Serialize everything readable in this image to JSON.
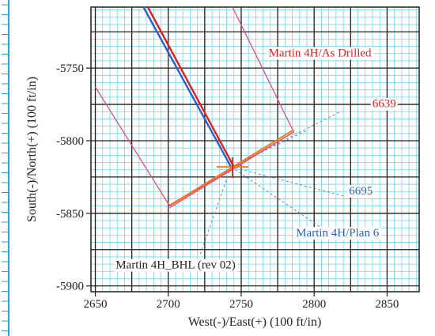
{
  "colors": {
    "background": "#ffffff",
    "minor_grid": "#72d4ec",
    "major_grid": "#1f1f1f",
    "as_drilled": "#e02020",
    "plan": "#2a62c8",
    "target": "#e2507a",
    "bhl_pink": "#e8506c",
    "bhl_orange": "#f07f1c",
    "ruler": "#2aa5d4"
  },
  "chart_data": {
    "type": "line",
    "xlabel": "West(-)/East(+) (100 ft/in)",
    "ylabel": "South(-)/North(+) (100 ft/in)",
    "xlim": [
      2647,
      2872
    ],
    "ylim": [
      -5904,
      -5708
    ],
    "grid": true,
    "x_ticks": [
      {
        "value": 2650,
        "label": "2650"
      },
      {
        "value": 2700,
        "label": "2700"
      },
      {
        "value": 2750,
        "label": "2750"
      },
      {
        "value": 2800,
        "label": "2800"
      },
      {
        "value": 2850,
        "label": "2850"
      }
    ],
    "y_ticks": [
      {
        "value": -5750,
        "label": "-5750"
      },
      {
        "value": -5800,
        "label": "-5800"
      },
      {
        "value": -5850,
        "label": "-5850"
      },
      {
        "value": -5900,
        "label": "-5900"
      }
    ],
    "series": [
      {
        "name": "Martin 4H/As Drilled",
        "color": "#e02020",
        "x": [
          2686,
          2745
        ],
        "y": [
          -5708,
          -5818
        ]
      },
      {
        "name": "Martin 4H/Plan 6",
        "color": "#2a62c8",
        "x": [
          2683,
          2743
        ],
        "y": [
          -5708,
          -5818
        ]
      }
    ],
    "outline": {
      "name": "Martin 4H_BHL (rev 02)",
      "x": [
        2650,
        2701,
        2786,
        2744
      ],
      "y": [
        -5763,
        -5845,
        -5794,
        -5708
      ]
    },
    "bhl_segment": {
      "x": [
        2701,
        2786
      ],
      "y": [
        -5845,
        -5793
      ]
    },
    "target_point": {
      "x": 2744,
      "y": -5818
    },
    "annotations": [
      {
        "text": "Martin 4H/As Drilled",
        "color": "#e02020",
        "x": 2804,
        "y": -5742
      },
      {
        "text": "6639",
        "color": "#e02020",
        "x": 2848,
        "y": -5777
      },
      {
        "text": "6695",
        "color": "#2a62c8",
        "x": 2832,
        "y": -5837
      },
      {
        "text": "Martin 4H/Plan 6",
        "color": "#2a62c8",
        "x": 2816,
        "y": -5866
      },
      {
        "text": "Martin 4H_BHL (rev 02)",
        "color": "#222222",
        "x": 2705,
        "y": -5888
      }
    ],
    "leaders": [
      {
        "from": [
          2743,
          -5818
        ],
        "to": [
          2795,
          -5793
        ]
      },
      {
        "from": [
          2743,
          -5818
        ],
        "to": [
          2818,
          -5780
        ]
      },
      {
        "from": [
          2743,
          -5818
        ],
        "to": [
          2820,
          -5838
        ]
      },
      {
        "from": [
          2743,
          -5818
        ],
        "to": [
          2808,
          -5862
        ]
      },
      {
        "from": [
          2743,
          -5818
        ],
        "to": [
          2722,
          -5878
        ]
      }
    ]
  }
}
